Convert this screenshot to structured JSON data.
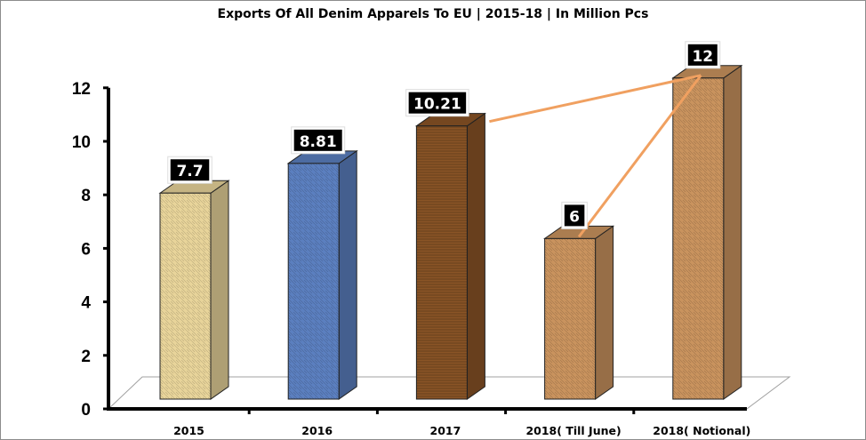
{
  "chart_data": {
    "type": "bar",
    "title": "Exports Of All Denim Apparels To EU | 2015-18 | In Million Pcs",
    "categories": [
      "2015",
      "2016",
      "2017",
      "2018( Till June)",
      "2018( Notional)"
    ],
    "values": [
      7.7,
      8.81,
      10.21,
      6,
      12
    ],
    "data_labels": [
      "7.7",
      "8.81",
      "10.21",
      "6",
      "12"
    ],
    "bar_colors": [
      "#e8d49a",
      "#5b7fbf",
      "#8a5426",
      "#c9935e",
      "#c9935e"
    ],
    "ylim": [
      0,
      12
    ],
    "yticks": [
      "0",
      "2",
      "4",
      "6",
      "8",
      "10",
      "12"
    ],
    "xlabel": "",
    "ylabel": "",
    "grid": false,
    "connector_lines": [
      {
        "from": "2017",
        "to": "2018( Notional)"
      },
      {
        "from": "2018( Till June)",
        "to": "2018( Notional)"
      }
    ],
    "connector_color": "#f0a060"
  }
}
